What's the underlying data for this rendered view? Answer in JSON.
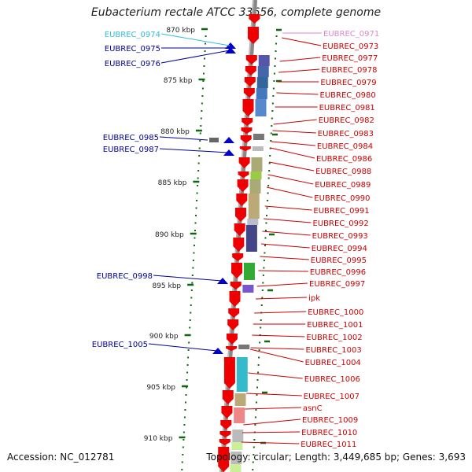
{
  "title": "Eubacterium rectale ATCC 33656, complete genome",
  "accession_label": "Accession: NC_012781",
  "topology_label": "Topology: circular; Length: 3,449,685 bp; Genes: 3,693",
  "scale_ticks": [
    {
      "label": "870 kbp",
      "kbp": 870
    },
    {
      "label": "875 kbp",
      "kbp": 875
    },
    {
      "label": "880 kbp",
      "kbp": 880
    },
    {
      "label": "885 kbp",
      "kbp": 885
    },
    {
      "label": "890 kbp",
      "kbp": 890
    },
    {
      "label": "895 kbp",
      "kbp": 895
    },
    {
      "label": "900 kbp",
      "kbp": 900
    },
    {
      "label": "905 kbp",
      "kbp": 905
    },
    {
      "label": "910 kbp",
      "kbp": 910
    }
  ],
  "left_genes": [
    {
      "label": "EUBREC_0974",
      "color": "#33bbdd"
    },
    {
      "label": "EUBREC_0975",
      "color": "#000099"
    },
    {
      "label": "EUBREC_0976",
      "color": "#000099"
    },
    {
      "label": "EUBREC_0985",
      "color": "#000099"
    },
    {
      "label": "EUBREC_0987",
      "color": "#000099"
    },
    {
      "label": "EUBREC_0998",
      "color": "#000099"
    },
    {
      "label": "EUBREC_1005",
      "color": "#000099"
    }
  ],
  "right_genes": [
    {
      "label": "EUBREC_0971",
      "color": "#dd88cc"
    },
    {
      "label": "EUBREC_0973",
      "color": "#cc0000"
    },
    {
      "label": "EUBREC_0977",
      "color": "#cc0000"
    },
    {
      "label": "EUBREC_0978",
      "color": "#cc0000"
    },
    {
      "label": "EUBREC_0979",
      "color": "#cc0000"
    },
    {
      "label": "EUBREC_0980",
      "color": "#cc0000"
    },
    {
      "label": "EUBREC_0981",
      "color": "#cc0000"
    },
    {
      "label": "EUBREC_0982",
      "color": "#cc0000"
    },
    {
      "label": "EUBREC_0983",
      "color": "#cc0000"
    },
    {
      "label": "EUBREC_0984",
      "color": "#cc0000"
    },
    {
      "label": "EUBREC_0986",
      "color": "#cc0000"
    },
    {
      "label": "EUBREC_0988",
      "color": "#cc0000"
    },
    {
      "label": "EUBREC_0989",
      "color": "#cc0000"
    },
    {
      "label": "EUBREC_0990",
      "color": "#cc0000"
    },
    {
      "label": "EUBREC_0991",
      "color": "#cc0000"
    },
    {
      "label": "EUBREC_0992",
      "color": "#cc0000"
    },
    {
      "label": "EUBREC_0993",
      "color": "#cc0000"
    },
    {
      "label": "EUBREC_0994",
      "color": "#cc0000"
    },
    {
      "label": "EUBREC_0995",
      "color": "#cc0000"
    },
    {
      "label": "EUBREC_0996",
      "color": "#cc0000"
    },
    {
      "label": "EUBREC_0997",
      "color": "#cc0000"
    },
    {
      "label": "ipk",
      "color": "#cc0000"
    },
    {
      "label": "EUBREC_1000",
      "color": "#cc0000"
    },
    {
      "label": "EUBREC_1001",
      "color": "#cc0000"
    },
    {
      "label": "EUBREC_1002",
      "color": "#cc0000"
    },
    {
      "label": "EUBREC_1003",
      "color": "#cc0000"
    },
    {
      "label": "EUBREC_1004",
      "color": "#cc0000"
    },
    {
      "label": "EUBREC_1006",
      "color": "#cc0000"
    },
    {
      "label": "EUBREC_1007",
      "color": "#cc0000"
    },
    {
      "label": "asnC",
      "color": "#cc0000"
    },
    {
      "label": "EUBREC_1009",
      "color": "#cc0000"
    },
    {
      "label": "EUBREC_1010",
      "color": "#cc0000"
    },
    {
      "label": "EUBREC_1011",
      "color": "#cc0000"
    }
  ],
  "colors": {
    "forward_gene": "#ee0000",
    "reverse_gene": "#0000cc",
    "backbone": "#888888",
    "tick": "#116611"
  }
}
